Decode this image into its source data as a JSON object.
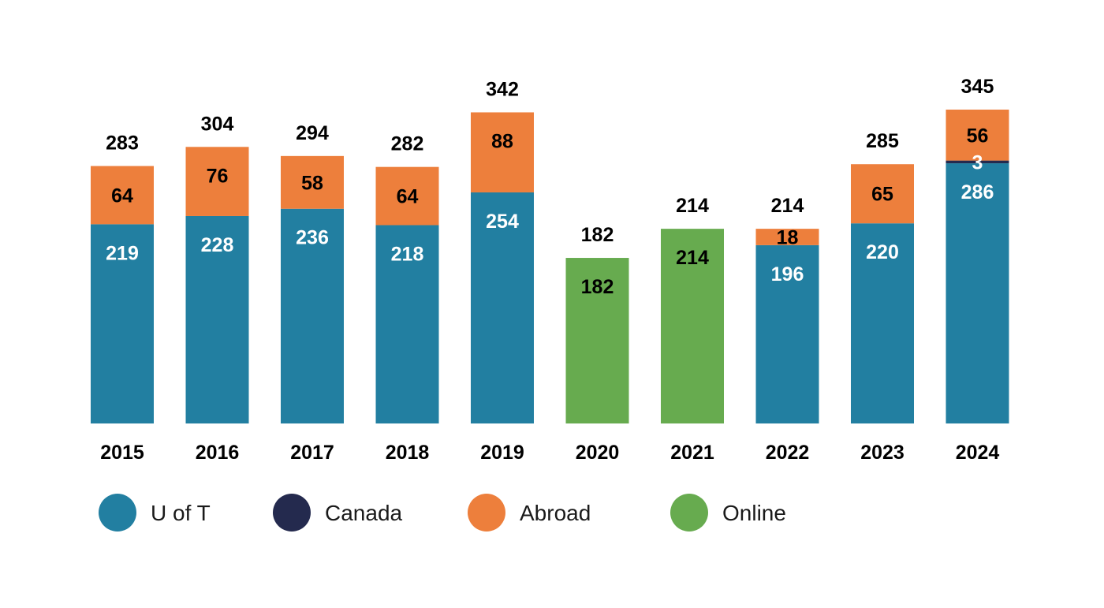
{
  "chart_data": {
    "type": "bar",
    "stacked": true,
    "title": "",
    "xlabel": "",
    "ylabel": "",
    "ylim": [
      0,
      345
    ],
    "grid": false,
    "legend_position": "bottom",
    "categories": [
      "2015",
      "2016",
      "2017",
      "2018",
      "2019",
      "2020",
      "2021",
      "2022",
      "2023",
      "2024"
    ],
    "totals": [
      283,
      304,
      294,
      282,
      342,
      182,
      214,
      214,
      285,
      345
    ],
    "series": [
      {
        "name": "U of T",
        "color": "#227fa1",
        "label_color": "#ffffff",
        "values": [
          219,
          228,
          236,
          218,
          254,
          0,
          0,
          196,
          220,
          286
        ]
      },
      {
        "name": "Canada",
        "color": "#242a4e",
        "label_color": "#ffffff",
        "values": [
          0,
          0,
          0,
          0,
          0,
          0,
          0,
          0,
          0,
          3
        ]
      },
      {
        "name": "Abroad",
        "color": "#ed7f3c",
        "label_color": "#000000",
        "values": [
          64,
          76,
          58,
          64,
          88,
          0,
          0,
          18,
          65,
          56
        ]
      },
      {
        "name": "Online",
        "color": "#67ab4f",
        "label_color": "#000000",
        "values": [
          0,
          0,
          0,
          0,
          0,
          182,
          214,
          0,
          0,
          0
        ]
      }
    ]
  }
}
